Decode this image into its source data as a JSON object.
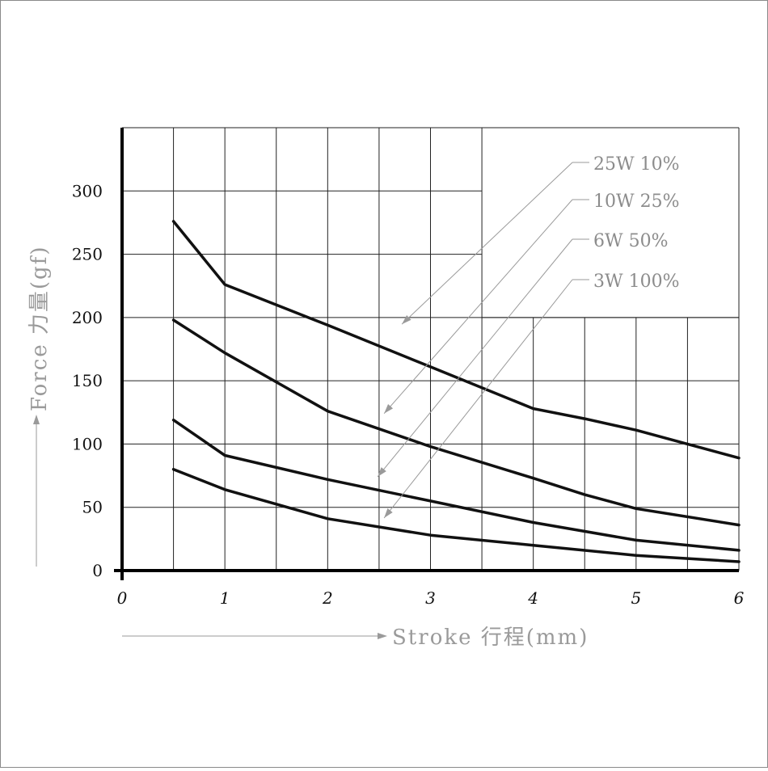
{
  "chart_data": {
    "type": "line",
    "xlabel": "Stroke 行程(mm)",
    "ylabel": "Force 力量(gf)",
    "xlim": [
      0,
      6
    ],
    "ylim": [
      0,
      350
    ],
    "x_ticks": [
      "0",
      "1",
      "2",
      "3",
      "4",
      "5",
      "6"
    ],
    "y_ticks": [
      "0",
      "50",
      "100",
      "150",
      "200",
      "250",
      "300"
    ],
    "grid": true,
    "legend_position": "top-right",
    "series": [
      {
        "name": "25W 10%",
        "x": [
          0.5,
          1,
          2,
          3,
          4,
          4.5,
          5,
          6
        ],
        "values": [
          276,
          226,
          194,
          161,
          128,
          120,
          111,
          89
        ]
      },
      {
        "name": "10W 25%",
        "x": [
          0.5,
          1,
          2,
          3,
          4,
          4.5,
          5,
          6
        ],
        "values": [
          198,
          172,
          126,
          98,
          73,
          60,
          49,
          36
        ]
      },
      {
        "name": "6W 50%",
        "x": [
          0.5,
          1,
          2,
          3,
          4,
          5,
          6
        ],
        "values": [
          119,
          91,
          72,
          55,
          38,
          24,
          16
        ]
      },
      {
        "name": "3W 100%",
        "x": [
          0.5,
          1,
          2,
          3,
          4,
          5,
          6
        ],
        "values": [
          80,
          64,
          41,
          28,
          20,
          12,
          7
        ]
      }
    ],
    "line_color": "#111111",
    "grid_color": "#222222",
    "annotation_color": "#9a9a9a"
  }
}
